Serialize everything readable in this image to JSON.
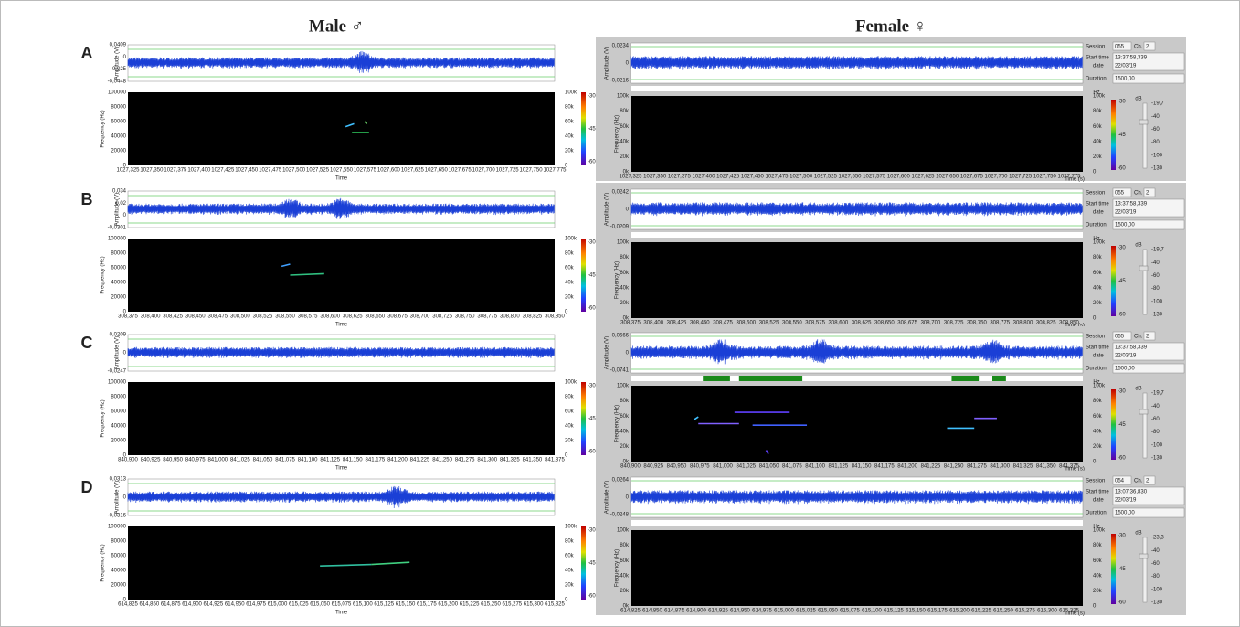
{
  "header": {
    "male": "Male ♂",
    "female": "Female ♀"
  },
  "labels": {
    "amplitude": "Amplitude (V)",
    "frequency": "Frequency (Hz)",
    "time": "Time",
    "time_s": "Time (s)",
    "hz": "Hz",
    "db": "dB",
    "session": "Session",
    "ch": "Ch.",
    "start_time": "Start time",
    "date": "date",
    "duration": "Duration"
  },
  "male_freq_ticks": [
    "100000",
    "80000",
    "60000",
    "40000",
    "20000",
    "0"
  ],
  "female_freq_ticks": [
    "100k",
    "80k",
    "60k",
    "40k",
    "20k",
    "0k"
  ],
  "cbar_hz_ticks": [
    "100k",
    "80k",
    "60k",
    "40k",
    "20k",
    "0"
  ],
  "cbar_db_ticks": [
    "-30",
    "-45",
    "-60"
  ],
  "rows": [
    {
      "label": "A",
      "time_ticks": [
        "1027,325",
        "1027,350",
        "1027,375",
        "1027,400",
        "1027,425",
        "1027,450",
        "1027,475",
        "1027,500",
        "1027,525",
        "1027,550",
        "1027,575",
        "1027,600",
        "1027,625",
        "1027,650",
        "1027,675",
        "1027,700",
        "1027,725",
        "1027,750",
        "1027,775"
      ],
      "male": {
        "amp_ticks": [
          "0,0409",
          "0",
          "-0,025",
          "-0,0448"
        ]
      },
      "female": {
        "amp_ticks": [
          "0,0234",
          "0",
          "-0,0216"
        ],
        "session": "055",
        "ch": "2",
        "start_time": "13:37:58,339",
        "date": "22/03/19",
        "duration": "1500,00",
        "slider_ticks": [
          "-19,7",
          "-40",
          "-60",
          "-80",
          "-100",
          "-130"
        ]
      }
    },
    {
      "label": "B",
      "time_ticks": [
        "308,375",
        "308,400",
        "308,425",
        "308,450",
        "308,475",
        "308,500",
        "308,525",
        "308,550",
        "308,575",
        "308,600",
        "308,625",
        "308,650",
        "308,675",
        "308,700",
        "308,725",
        "308,750",
        "308,775",
        "308,800",
        "308,825",
        "308,850"
      ],
      "male": {
        "amp_ticks": [
          "0,034",
          "0,02",
          "0",
          "-0,0301"
        ]
      },
      "female": {
        "amp_ticks": [
          "0,0242",
          "0",
          "-0,0209"
        ],
        "session": "055",
        "ch": "2",
        "start_time": "13:37:58,339",
        "date": "22/03/19",
        "duration": "1500,00",
        "slider_ticks": [
          "-19,7",
          "-40",
          "-60",
          "-80",
          "-100",
          "-130"
        ]
      }
    },
    {
      "label": "C",
      "time_ticks": [
        "840,900",
        "840,925",
        "840,950",
        "840,975",
        "841,000",
        "841,025",
        "841,050",
        "841,075",
        "841,100",
        "841,125",
        "841,150",
        "841,175",
        "841,200",
        "841,225",
        "841,250",
        "841,275",
        "841,300",
        "841,325",
        "841,350",
        "841,375"
      ],
      "male": {
        "amp_ticks": [
          "0,0209",
          "0",
          "-0,0247"
        ]
      },
      "female": {
        "amp_ticks": [
          "0,0666",
          "0",
          "-0,0741"
        ],
        "session": "055",
        "ch": "2",
        "start_time": "13:37:58,339",
        "date": "22/03/19",
        "duration": "1500,00",
        "slider_ticks": [
          "-19,7",
          "-40",
          "-60",
          "-80",
          "-100",
          "-130"
        ]
      }
    },
    {
      "label": "D",
      "time_ticks": [
        "614,825",
        "614,850",
        "614,875",
        "614,900",
        "614,925",
        "614,950",
        "614,975",
        "615,000",
        "615,025",
        "615,050",
        "615,075",
        "615,100",
        "615,125",
        "615,150",
        "615,175",
        "615,200",
        "615,225",
        "615,250",
        "615,275",
        "615,300",
        "615,325"
      ],
      "male": {
        "amp_ticks": [
          "0,0313",
          "0",
          "-0,0316"
        ]
      },
      "female": {
        "amp_ticks": [
          "0,0264",
          "0",
          "-0,0248"
        ],
        "session": "054",
        "ch": "2",
        "start_time": "13:07:36,830",
        "date": "22/03/19",
        "duration": "1500,00",
        "slider_ticks": [
          "-23,3",
          "-40",
          "-60",
          "-80",
          "-100",
          "-130"
        ]
      }
    }
  ]
}
